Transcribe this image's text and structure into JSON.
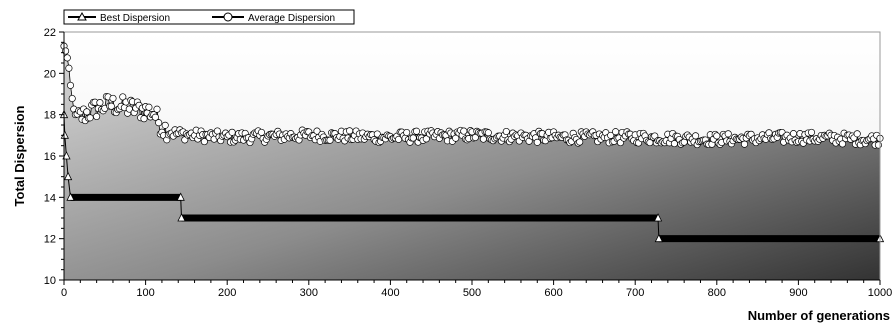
{
  "chart_data": {
    "type": "line",
    "title": "",
    "xlabel": "Number of generations",
    "ylabel": "Total Dispersion",
    "xlim": [
      0,
      1000
    ],
    "ylim": [
      10,
      22
    ],
    "xticks": [
      0,
      100,
      200,
      300,
      400,
      500,
      600,
      700,
      800,
      900,
      1000
    ],
    "yticks": [
      10,
      12,
      14,
      16,
      18,
      20,
      22
    ],
    "grid": false,
    "legend": "top-left",
    "series": [
      {
        "name": "Best Dispersion",
        "marker": "triangle",
        "points": [
          [
            0,
            18
          ],
          [
            1,
            17
          ],
          [
            3,
            16
          ],
          [
            5,
            15
          ],
          [
            8,
            14
          ],
          [
            143,
            14
          ],
          [
            144,
            13
          ],
          [
            728,
            13
          ],
          [
            729,
            12
          ],
          [
            1000,
            12
          ]
        ]
      },
      {
        "name": "Average Dispersion",
        "marker": "circle",
        "keypoints": [
          [
            0,
            21.3
          ],
          [
            3,
            21.0
          ],
          [
            6,
            20.2
          ],
          [
            9,
            19.0
          ],
          [
            12,
            18.3
          ],
          [
            15,
            17.8
          ],
          [
            20,
            17.9
          ],
          [
            30,
            18.1
          ],
          [
            40,
            18.3
          ],
          [
            55,
            18.5
          ],
          [
            70,
            18.4
          ],
          [
            85,
            18.3
          ],
          [
            100,
            18.2
          ],
          [
            110,
            18.1
          ],
          [
            120,
            17.4
          ],
          [
            135,
            17.1
          ],
          [
            160,
            17.0
          ],
          [
            200,
            16.9
          ],
          [
            300,
            17.0
          ],
          [
            400,
            16.9
          ],
          [
            500,
            17.0
          ],
          [
            600,
            16.9
          ],
          [
            700,
            16.9
          ],
          [
            800,
            16.8
          ],
          [
            900,
            16.9
          ],
          [
            1000,
            16.8
          ]
        ]
      }
    ]
  },
  "colors": {
    "background": "#ffffff",
    "plot_light": "#f8f8f8",
    "area_light": "#cfcfcf",
    "area_dark": "#3a3a3a",
    "marker_fill": "#ffffff",
    "stroke": "#000000"
  }
}
